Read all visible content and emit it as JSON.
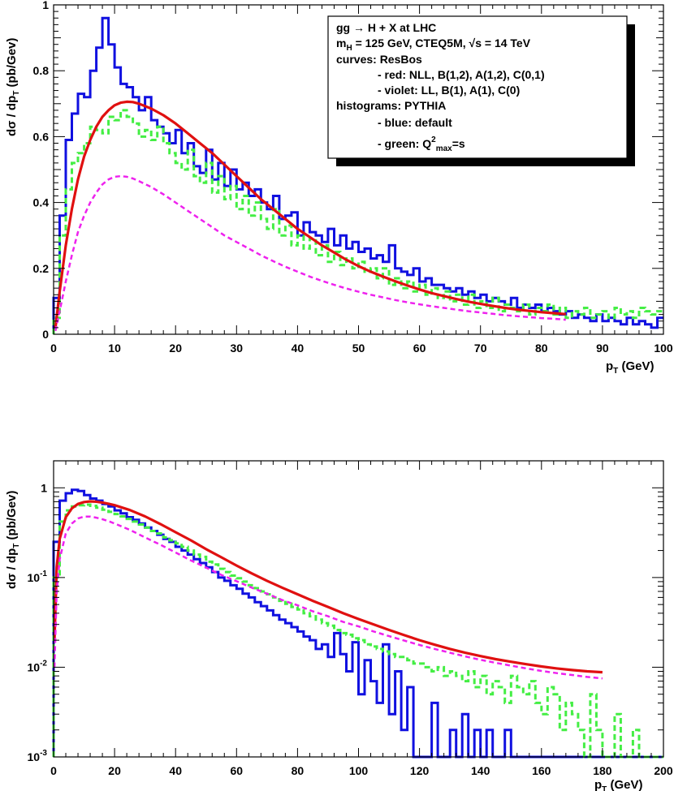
{
  "colors": {
    "blue": "#1010e0",
    "green": "#44ee44",
    "red": "#e01010",
    "violet": "#ee22ee",
    "frame": "#000000"
  },
  "legend": {
    "line1": "gg → H + X at LHC",
    "line2_m": "m",
    "line2_sub": "H",
    "line2_rest": " = 125 GeV, CTEQ5M, √s = 14 TeV",
    "line3": "curves: ResBos",
    "line4": "- red: NLL, B(1,2), A(1,2), C(0,1)",
    "line5": "- violet: LL, B(1), A(1), C(0)",
    "line6": "histograms: PYTHIA",
    "line7": "- blue: default",
    "line8_pre": "- green: Q",
    "line8_sup": "2",
    "line8_sub": "max",
    "line8_post": "=s"
  },
  "chart_data": [
    {
      "type": "line",
      "name": "linear panel",
      "title": "",
      "xlabel_main": "p",
      "xlabel_sub": "T",
      "xlabel_unit": " (GeV)",
      "ylabel_main": "dσ / dp",
      "ylabel_sub": "T",
      "ylabel_unit": " (pb/Gev)",
      "xlim": [
        0,
        100
      ],
      "ylim": [
        0,
        1.0
      ],
      "x_ticks": [
        "0",
        "10",
        "20",
        "30",
        "40",
        "50",
        "60",
        "70",
        "80",
        "90",
        "100"
      ],
      "y_ticks": [
        "0",
        "0.2",
        "0.4",
        "0.6",
        "0.8",
        "1"
      ],
      "grid": false,
      "bin_width": 1,
      "series": [
        {
          "name": "PYTHIA default",
          "style": "histogram",
          "color": "blue",
          "values": [
            0.11,
            0.36,
            0.59,
            0.67,
            0.73,
            0.72,
            0.8,
            0.87,
            0.96,
            0.88,
            0.81,
            0.76,
            0.75,
            0.72,
            0.68,
            0.72,
            0.65,
            0.63,
            0.61,
            0.58,
            0.62,
            0.55,
            0.58,
            0.51,
            0.49,
            0.56,
            0.47,
            0.52,
            0.45,
            0.5,
            0.44,
            0.46,
            0.42,
            0.44,
            0.4,
            0.38,
            0.42,
            0.35,
            0.36,
            0.37,
            0.3,
            0.34,
            0.31,
            0.3,
            0.28,
            0.32,
            0.27,
            0.3,
            0.26,
            0.28,
            0.25,
            0.26,
            0.23,
            0.24,
            0.22,
            0.27,
            0.2,
            0.19,
            0.18,
            0.2,
            0.16,
            0.17,
            0.15,
            0.15,
            0.14,
            0.13,
            0.14,
            0.12,
            0.13,
            0.11,
            0.12,
            0.1,
            0.11,
            0.1,
            0.09,
            0.11,
            0.08,
            0.09,
            0.08,
            0.09,
            0.07,
            0.08,
            0.07,
            0.06,
            0.07,
            0.05,
            0.06,
            0.05,
            0.04,
            0.06,
            0.04,
            0.05,
            0.04,
            0.03,
            0.05,
            0.03,
            0.04,
            0.03,
            0.02,
            0.05
          ]
        },
        {
          "name": "PYTHIA Q2max=s",
          "style": "histogram-dashed",
          "color": "green",
          "values": [
            0.05,
            0.3,
            0.44,
            0.52,
            0.55,
            0.58,
            0.63,
            0.62,
            0.61,
            0.66,
            0.65,
            0.68,
            0.66,
            0.64,
            0.6,
            0.62,
            0.59,
            0.63,
            0.58,
            0.55,
            0.52,
            0.5,
            0.56,
            0.48,
            0.46,
            0.52,
            0.43,
            0.48,
            0.41,
            0.45,
            0.38,
            0.42,
            0.36,
            0.4,
            0.35,
            0.32,
            0.38,
            0.3,
            0.33,
            0.27,
            0.3,
            0.26,
            0.29,
            0.24,
            0.27,
            0.22,
            0.25,
            0.21,
            0.23,
            0.2,
            0.22,
            0.19,
            0.2,
            0.17,
            0.2,
            0.15,
            0.17,
            0.14,
            0.16,
            0.13,
            0.15,
            0.12,
            0.14,
            0.11,
            0.13,
            0.1,
            0.12,
            0.09,
            0.12,
            0.08,
            0.1,
            0.08,
            0.11,
            0.07,
            0.09,
            0.08,
            0.07,
            0.09,
            0.06,
            0.08,
            0.07,
            0.09,
            0.06,
            0.08,
            0.05,
            0.07,
            0.06,
            0.08,
            0.05,
            0.06,
            0.07,
            0.05,
            0.08,
            0.06,
            0.07,
            0.05,
            0.08,
            0.07,
            0.06,
            0.07
          ]
        },
        {
          "name": "ResBos NLL",
          "style": "solid-curve",
          "color": "red",
          "x": [
            0.3,
            1,
            2,
            3,
            4,
            5,
            6,
            7,
            8,
            9,
            10,
            11,
            12,
            13,
            14,
            16,
            18,
            20,
            22,
            24,
            26,
            28,
            30,
            32,
            34,
            36,
            38,
            40,
            42,
            44,
            46,
            48,
            50,
            52,
            54,
            56,
            58,
            60,
            62,
            64,
            66,
            68,
            70,
            72,
            74,
            76,
            78,
            80,
            82,
            84
          ],
          "y": [
            0.02,
            0.13,
            0.27,
            0.38,
            0.47,
            0.54,
            0.59,
            0.63,
            0.66,
            0.68,
            0.695,
            0.703,
            0.706,
            0.705,
            0.7,
            0.685,
            0.665,
            0.64,
            0.61,
            0.58,
            0.55,
            0.515,
            0.48,
            0.445,
            0.41,
            0.38,
            0.35,
            0.32,
            0.295,
            0.27,
            0.248,
            0.226,
            0.207,
            0.19,
            0.175,
            0.161,
            0.148,
            0.136,
            0.125,
            0.116,
            0.107,
            0.099,
            0.092,
            0.086,
            0.08,
            0.075,
            0.071,
            0.067,
            0.064,
            0.061
          ]
        },
        {
          "name": "ResBos LL",
          "style": "dashed-curve",
          "color": "violet",
          "x": [
            0.3,
            1,
            2,
            3,
            4,
            5,
            6,
            7,
            8,
            9,
            10,
            11,
            12,
            13,
            14,
            16,
            18,
            20,
            22,
            24,
            26,
            28,
            30,
            32,
            34,
            36,
            38,
            40,
            42,
            44,
            46,
            48,
            50,
            52,
            54,
            56,
            58,
            60,
            62,
            64,
            66,
            68,
            70,
            72,
            74,
            76,
            78,
            80,
            82,
            84
          ],
          "y": [
            0.01,
            0.07,
            0.16,
            0.24,
            0.31,
            0.36,
            0.4,
            0.43,
            0.455,
            0.47,
            0.478,
            0.48,
            0.478,
            0.473,
            0.465,
            0.447,
            0.425,
            0.4,
            0.375,
            0.35,
            0.325,
            0.3,
            0.28,
            0.26,
            0.24,
            0.222,
            0.205,
            0.19,
            0.175,
            0.162,
            0.15,
            0.139,
            0.129,
            0.12,
            0.112,
            0.104,
            0.097,
            0.091,
            0.085,
            0.08,
            0.075,
            0.07,
            0.066,
            0.062,
            0.058,
            0.055,
            0.052,
            0.049,
            0.047,
            0.044
          ]
        }
      ]
    },
    {
      "type": "line",
      "name": "log panel",
      "title": "",
      "xlabel_main": "p",
      "xlabel_sub": "T",
      "xlabel_unit": " (GeV)",
      "ylabel_main": "dσ / dp",
      "ylabel_sub": "T",
      "ylabel_unit": " (pb/Gev)",
      "xlim": [
        0,
        200
      ],
      "ylim": [
        0.001,
        2
      ],
      "yscale": "log",
      "x_ticks": [
        "0",
        "20",
        "40",
        "60",
        "80",
        "100",
        "120",
        "140",
        "160",
        "180",
        "200"
      ],
      "y_ticks": [
        {
          "base": "1",
          "exp": ""
        },
        {
          "base": "10",
          "exp": "-1"
        },
        {
          "base": "10",
          "exp": "-2"
        },
        {
          "base": "10",
          "exp": "-3"
        }
      ],
      "grid": false,
      "bin_width": 2,
      "series": [
        {
          "name": "PYTHIA default",
          "style": "histogram",
          "color": "blue",
          "values": [
            0.25,
            0.72,
            0.87,
            0.95,
            0.92,
            0.83,
            0.76,
            0.72,
            0.66,
            0.62,
            0.56,
            0.52,
            0.47,
            0.44,
            0.4,
            0.36,
            0.33,
            0.3,
            0.27,
            0.25,
            0.22,
            0.2,
            0.18,
            0.16,
            0.145,
            0.13,
            0.115,
            0.1,
            0.092,
            0.082,
            0.075,
            0.066,
            0.06,
            0.053,
            0.048,
            0.043,
            0.038,
            0.034,
            0.031,
            0.028,
            0.025,
            0.022,
            0.02,
            0.016,
            0.018,
            0.013,
            0.024,
            0.014,
            0.009,
            0.019,
            0.005,
            0.012,
            0.007,
            0.004,
            0.018,
            0.003,
            0.009,
            0.002,
            0.006,
            0.001,
            0.001,
            0.001,
            0.004,
            0.001,
            0.001,
            0.002,
            0.001,
            0.003,
            0.001,
            0.002,
            0.001,
            0.002,
            0.001,
            0.001,
            0.002,
            0.001,
            0.001,
            0.001,
            0.001,
            0.001,
            0.001,
            0.001,
            0.001,
            0.001,
            0.001,
            0.001,
            0.001,
            0.001,
            0.001,
            0.001,
            0.001,
            0.001,
            0.001,
            0.001,
            0.001,
            0.001,
            0.001,
            0.001,
            0.001,
            0.001
          ]
        },
        {
          "name": "PYTHIA Q2max=s",
          "style": "histogram-dashed",
          "color": "green",
          "values": [
            0.1,
            0.42,
            0.56,
            0.62,
            0.64,
            0.65,
            0.63,
            0.6,
            0.57,
            0.54,
            0.51,
            0.48,
            0.45,
            0.42,
            0.39,
            0.36,
            0.33,
            0.31,
            0.28,
            0.26,
            0.24,
            0.22,
            0.2,
            0.18,
            0.17,
            0.15,
            0.14,
            0.125,
            0.115,
            0.105,
            0.098,
            0.09,
            0.082,
            0.076,
            0.07,
            0.065,
            0.06,
            0.055,
            0.051,
            0.047,
            0.044,
            0.04,
            0.037,
            0.034,
            0.031,
            0.029,
            0.026,
            0.024,
            0.023,
            0.021,
            0.02,
            0.018,
            0.017,
            0.016,
            0.015,
            0.014,
            0.013,
            0.013,
            0.012,
            0.011,
            0.011,
            0.01,
            0.009,
            0.01,
            0.008,
            0.009,
            0.008,
            0.007,
            0.009,
            0.006,
            0.008,
            0.005,
            0.007,
            0.006,
            0.004,
            0.008,
            0.006,
            0.005,
            0.007,
            0.004,
            0.003,
            0.006,
            0.005,
            0.002,
            0.004,
            0.003,
            0.002,
            0.001,
            0.005,
            0.002,
            0.001,
            0.001,
            0.003,
            0.001,
            0.001,
            0.002,
            0.001,
            0.001,
            0.001,
            0.001
          ]
        },
        {
          "name": "ResBos NLL",
          "style": "solid-curve",
          "color": "red",
          "x": [
            0.3,
            1,
            2,
            4,
            6,
            8,
            10,
            12,
            14,
            16,
            18,
            20,
            25,
            30,
            35,
            40,
            45,
            50,
            55,
            60,
            65,
            70,
            75,
            80,
            85,
            90,
            95,
            100,
            105,
            110,
            115,
            120,
            125,
            130,
            135,
            140,
            145,
            150,
            155,
            160,
            165,
            170,
            175,
            180
          ],
          "y": [
            0.02,
            0.13,
            0.27,
            0.47,
            0.59,
            0.66,
            0.695,
            0.706,
            0.7,
            0.685,
            0.665,
            0.64,
            0.565,
            0.48,
            0.395,
            0.32,
            0.26,
            0.207,
            0.168,
            0.136,
            0.111,
            0.092,
            0.077,
            0.065,
            0.055,
            0.047,
            0.04,
            0.0345,
            0.03,
            0.026,
            0.0228,
            0.02,
            0.0178,
            0.016,
            0.0145,
            0.0133,
            0.0123,
            0.0115,
            0.0108,
            0.0102,
            0.0097,
            0.0093,
            0.009,
            0.0088
          ]
        },
        {
          "name": "ResBos LL",
          "style": "dashed-curve",
          "color": "violet",
          "x": [
            0.3,
            1,
            2,
            4,
            6,
            8,
            10,
            12,
            14,
            16,
            18,
            20,
            25,
            30,
            35,
            40,
            45,
            50,
            55,
            60,
            65,
            70,
            75,
            80,
            85,
            90,
            95,
            100,
            105,
            110,
            115,
            120,
            125,
            130,
            135,
            140,
            145,
            150,
            155,
            160,
            165,
            170,
            175,
            180
          ],
          "y": [
            0.01,
            0.07,
            0.16,
            0.31,
            0.4,
            0.455,
            0.478,
            0.478,
            0.465,
            0.447,
            0.425,
            0.4,
            0.34,
            0.28,
            0.232,
            0.19,
            0.155,
            0.129,
            0.107,
            0.091,
            0.077,
            0.066,
            0.056,
            0.049,
            0.042,
            0.037,
            0.032,
            0.0285,
            0.025,
            0.0222,
            0.0198,
            0.0177,
            0.016,
            0.0145,
            0.0132,
            0.0121,
            0.0112,
            0.0104,
            0.0097,
            0.0091,
            0.0086,
            0.0082,
            0.0078,
            0.0075
          ]
        }
      ]
    }
  ]
}
